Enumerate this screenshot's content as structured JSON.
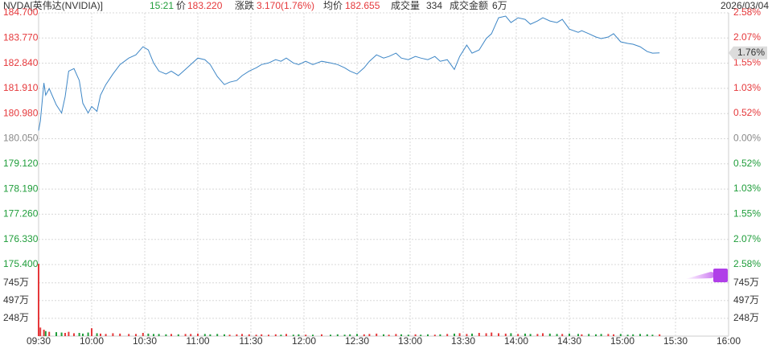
{
  "chart_data": {
    "type": "line",
    "header": {
      "symbol": "NVDA[英伟达(NVIDIA)]",
      "time": "15:21",
      "price_label": "价",
      "price": "183.220",
      "change_label": "涨跌",
      "change": "3.170(1.76%)",
      "avg_label": "均价",
      "avg": "182.655",
      "volume_label": "成交量",
      "volume": "334",
      "amount_label": "成交金额",
      "amount": "6万",
      "date": "2026/03/04"
    },
    "x": [
      "09:30",
      "09:31",
      "09:33",
      "09:34",
      "09:36",
      "09:40",
      "09:43",
      "09:45",
      "09:47",
      "09:50",
      "09:53",
      "09:55",
      "09:58",
      "10:00",
      "10:03",
      "10:05",
      "10:08",
      "10:12",
      "10:16",
      "10:21",
      "10:25",
      "10:29",
      "10:32",
      "10:35",
      "10:38",
      "10:42",
      "10:45",
      "10:49",
      "10:53",
      "10:56",
      "11:00",
      "11:04",
      "11:07",
      "11:11",
      "11:15",
      "11:18",
      "11:22",
      "11:25",
      "11:29",
      "11:33",
      "11:36",
      "11:40",
      "11:44",
      "11:47",
      "11:50",
      "11:54",
      "11:57",
      "12:01",
      "12:05",
      "12:10",
      "12:15",
      "12:19",
      "12:23",
      "12:26",
      "12:30",
      "12:34",
      "12:37",
      "12:41",
      "12:45",
      "12:48",
      "12:52",
      "12:55",
      "12:59",
      "13:03",
      "13:06",
      "13:10",
      "13:14",
      "13:17",
      "13:21",
      "13:25",
      "13:28",
      "13:32",
      "13:35",
      "13:39",
      "13:43",
      "13:46",
      "13:50",
      "13:54",
      "13:57",
      "14:01",
      "14:05",
      "14:08",
      "14:12",
      "14:15",
      "14:19",
      "14:23",
      "14:26",
      "14:30",
      "14:35",
      "14:37",
      "14:41",
      "14:45",
      "14:48",
      "14:52",
      "14:55",
      "14:59",
      "15:03",
      "15:06",
      "15:10",
      "15:14",
      "15:17",
      "15:21"
    ],
    "xlim": [
      "09:30",
      "16:00"
    ],
    "xticks": [
      "09:30",
      "10:00",
      "10:30",
      "11:00",
      "11:30",
      "12:00",
      "12:30",
      "13:00",
      "13:30",
      "14:00",
      "14:30",
      "15:00",
      "15:30",
      "16:00"
    ],
    "ylim": [
      175.4,
      184.7
    ],
    "yticks": [
      {
        "value": 184.7,
        "label": "184.700"
      },
      {
        "value": 183.77,
        "label": "183.770"
      },
      {
        "value": 182.84,
        "label": "182.840"
      },
      {
        "value": 181.91,
        "label": "181.910"
      },
      {
        "value": 180.98,
        "label": "180.980"
      },
      {
        "value": 180.05,
        "label": "180.050"
      },
      {
        "value": 179.12,
        "label": "179.120"
      },
      {
        "value": 178.19,
        "label": "178.190"
      },
      {
        "value": 177.26,
        "label": "177.260"
      },
      {
        "value": 176.33,
        "label": "176.330"
      },
      {
        "value": 175.4,
        "label": "175.400"
      }
    ],
    "y2lim": [
      -2.58,
      2.58
    ],
    "y2ticks": [
      {
        "value": 2.58,
        "label": "2.58%"
      },
      {
        "value": 2.07,
        "label": "2.07%"
      },
      {
        "value": 1.55,
        "label": "1.55%"
      },
      {
        "value": 1.03,
        "label": "1.03%"
      },
      {
        "value": 0.52,
        "label": "0.52%"
      },
      {
        "value": 0,
        "label": "0.00%"
      },
      {
        "value": -0.52,
        "label": "0.52%"
      },
      {
        "value": -1.03,
        "label": "1.03%"
      },
      {
        "value": -1.55,
        "label": "1.55%"
      },
      {
        "value": -2.07,
        "label": "2.07%"
      },
      {
        "value": -2.58,
        "label": "2.58%"
      }
    ],
    "volume_ylim": [
      0,
      1000
    ],
    "volume_ticks": [
      {
        "value": 745,
        "label": "745万"
      },
      {
        "value": 497,
        "label": "497万"
      },
      {
        "value": 248,
        "label": "248万"
      }
    ],
    "current_label": "1.76%",
    "up_color": "#e5383b",
    "down_color": "#1f9d3a",
    "flat_color": "#888888",
    "grid": true,
    "series": [
      {
        "color": "#3d86c6",
        "values": [
          180.35,
          180.71,
          182.11,
          181.66,
          181.9,
          181.3,
          181.0,
          181.6,
          182.55,
          182.64,
          182.2,
          181.36,
          181.0,
          181.24,
          181.06,
          181.66,
          182.05,
          182.44,
          182.79,
          183.03,
          183.15,
          183.45,
          183.33,
          182.85,
          182.55,
          182.44,
          182.55,
          182.38,
          182.61,
          182.79,
          183.03,
          182.97,
          182.79,
          182.35,
          182.05,
          182.14,
          182.2,
          182.38,
          182.55,
          182.67,
          182.79,
          182.85,
          182.97,
          182.91,
          183.03,
          182.85,
          182.79,
          182.91,
          182.79,
          182.91,
          182.85,
          182.79,
          182.67,
          182.55,
          182.44,
          182.67,
          182.91,
          183.15,
          183.03,
          183.09,
          183.21,
          183.03,
          182.97,
          183.09,
          183.03,
          182.97,
          183.09,
          182.91,
          182.97,
          182.61,
          183.09,
          183.51,
          183.21,
          183.33,
          183.75,
          183.93,
          184.52,
          184.58,
          184.34,
          184.52,
          184.46,
          184.28,
          184.4,
          184.52,
          184.4,
          184.34,
          184.46,
          184.1,
          183.98,
          184.04,
          183.93,
          183.81,
          183.75,
          183.81,
          183.93,
          183.63,
          183.57,
          183.54,
          183.45,
          183.27,
          183.21,
          183.22
        ]
      },
      {
        "axis": "volume",
        "values": [
          1010,
          120,
          90,
          70,
          60,
          55,
          50,
          45,
          60,
          40,
          45,
          35,
          50,
          110,
          40,
          35,
          30,
          40,
          35,
          30,
          30,
          45,
          35,
          30,
          30,
          25,
          30,
          25,
          30,
          30,
          35,
          30,
          25,
          30,
          25,
          20,
          25,
          30,
          25,
          20,
          25,
          20,
          25,
          20,
          30,
          20,
          25,
          20,
          20,
          25,
          20,
          25,
          20,
          25,
          30,
          25,
          30,
          35,
          25,
          20,
          30,
          25,
          20,
          25,
          20,
          25,
          20,
          25,
          30,
          35,
          40,
          30,
          35,
          45,
          40,
          50,
          40,
          35,
          40,
          30,
          35,
          30,
          30,
          40,
          35,
          30,
          30,
          35,
          30,
          25,
          30,
          25,
          30,
          30,
          25,
          30,
          20,
          25,
          30,
          25,
          20,
          25
        ]
      }
    ]
  }
}
